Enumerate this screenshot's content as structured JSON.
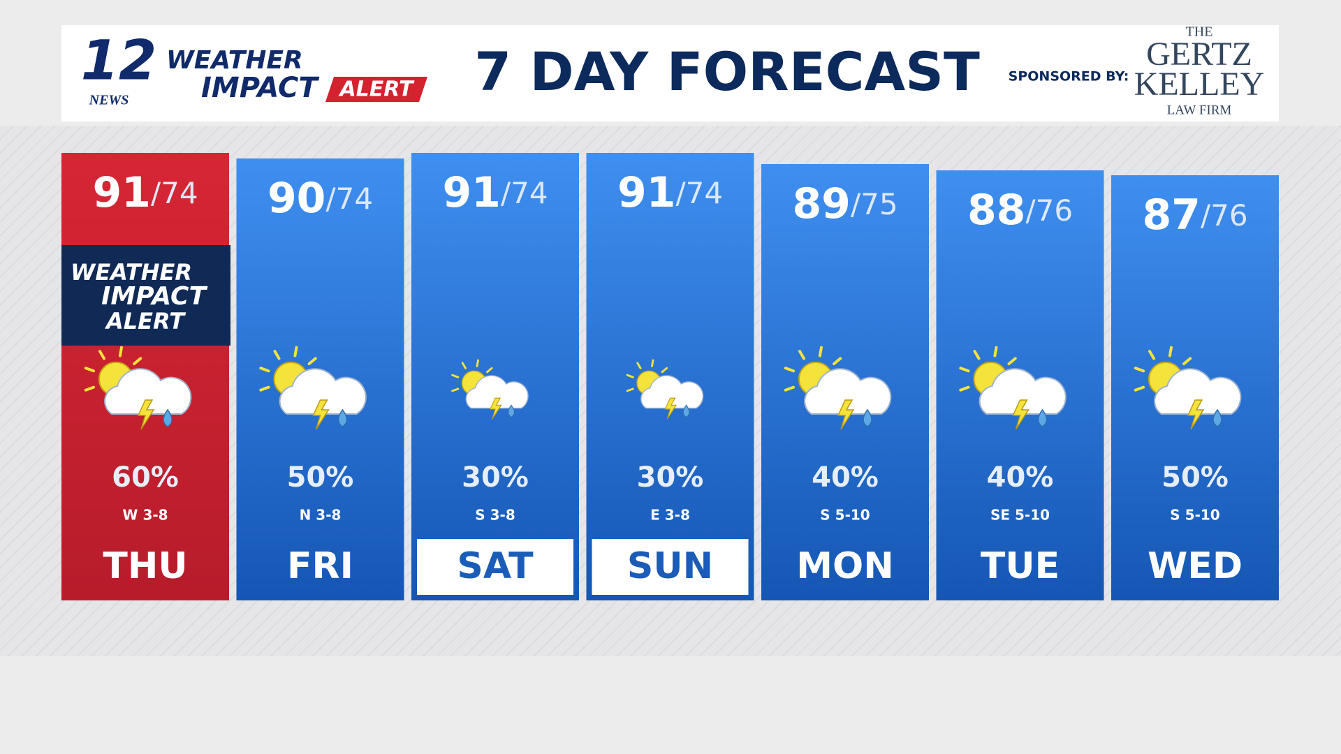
{
  "header": {
    "logo": {
      "number": "12",
      "station": "NEWS",
      "line1": "WEATHER",
      "line2": "IMPACT",
      "line3": "ALERT"
    },
    "title": "7 DAY FORECAST",
    "sponsor_label": "SPONSORED BY:",
    "sponsor": {
      "line1": "THE",
      "line2": "GERTZ",
      "line3": "KELLEY",
      "line4": "LAW FIRM"
    }
  },
  "separator": "/",
  "days": [
    {
      "day": "THU",
      "high": 91,
      "low": 74,
      "precip": "60%",
      "wind": "W 3-8",
      "alert": true,
      "alert_badge": {
        "line1": "WEATHER",
        "line2": "IMPACT",
        "line3": "ALERT"
      }
    },
    {
      "day": "FRI",
      "high": 90,
      "low": 74,
      "precip": "50%",
      "wind": "N 3-8"
    },
    {
      "day": "SAT",
      "high": 91,
      "low": 74,
      "precip": "30%",
      "wind": "S 3-8",
      "highlight": true
    },
    {
      "day": "SUN",
      "high": 91,
      "low": 74,
      "precip": "30%",
      "wind": "E 3-8",
      "highlight": true
    },
    {
      "day": "MON",
      "high": 89,
      "low": 75,
      "precip": "40%",
      "wind": "S 5-10"
    },
    {
      "day": "TUE",
      "high": 88,
      "low": 76,
      "precip": "40%",
      "wind": "SE 5-10"
    },
    {
      "day": "WED",
      "high": 87,
      "low": 76,
      "precip": "50%",
      "wind": "S 5-10"
    }
  ]
}
